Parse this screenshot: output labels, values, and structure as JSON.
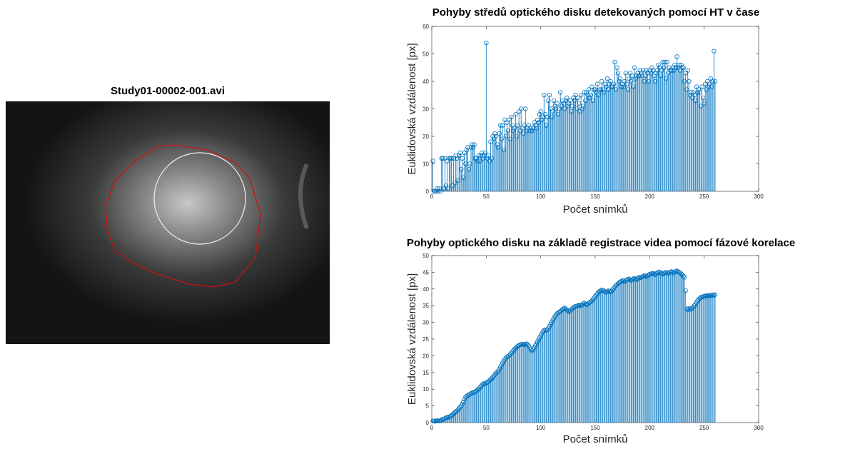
{
  "image": {
    "title": "Study01-00002-001.avi"
  },
  "chart_data": [
    {
      "type": "stem",
      "title": "Pohyby středů optického disku detekovaných pomocí HT v čase",
      "xlabel": "Počet snímků",
      "ylabel": "Euklidovská vzdálenost [px]",
      "color": "#0072bd",
      "xlim": [
        0,
        300
      ],
      "ylim": [
        0,
        60
      ],
      "xticks": [
        0,
        50,
        100,
        150,
        200,
        250,
        300
      ],
      "yticks": [
        0,
        10,
        20,
        30,
        40,
        50,
        60
      ],
      "box": true,
      "x": [
        1,
        2,
        3,
        4,
        5,
        6,
        7,
        8,
        9,
        10,
        11,
        12,
        13,
        14,
        15,
        16,
        17,
        18,
        19,
        20,
        21,
        22,
        23,
        24,
        25,
        26,
        27,
        28,
        29,
        30,
        31,
        32,
        33,
        34,
        35,
        36,
        37,
        38,
        39,
        40,
        41,
        42,
        43,
        44,
        45,
        46,
        47,
        48,
        49,
        50,
        51,
        52,
        53,
        54,
        55,
        56,
        57,
        58,
        59,
        60,
        61,
        62,
        63,
        64,
        65,
        66,
        67,
        68,
        69,
        70,
        71,
        72,
        73,
        74,
        75,
        76,
        77,
        78,
        79,
        80,
        81,
        82,
        83,
        84,
        85,
        86,
        87,
        88,
        89,
        90,
        91,
        92,
        93,
        94,
        95,
        96,
        97,
        98,
        99,
        100,
        101,
        102,
        103,
        104,
        105,
        106,
        107,
        108,
        109,
        110,
        111,
        112,
        113,
        114,
        115,
        116,
        117,
        118,
        119,
        120,
        121,
        122,
        123,
        124,
        125,
        126,
        127,
        128,
        129,
        130,
        131,
        132,
        133,
        134,
        135,
        136,
        137,
        138,
        139,
        140,
        141,
        142,
        143,
        144,
        145,
        146,
        147,
        148,
        149,
        150,
        151,
        152,
        153,
        154,
        155,
        156,
        157,
        158,
        159,
        160,
        161,
        162,
        163,
        164,
        165,
        166,
        167,
        168,
        169,
        170,
        171,
        172,
        173,
        174,
        175,
        176,
        177,
        178,
        179,
        180,
        181,
        182,
        183,
        184,
        185,
        186,
        187,
        188,
        189,
        190,
        191,
        192,
        193,
        194,
        195,
        196,
        197,
        198,
        199,
        200,
        201,
        202,
        203,
        204,
        205,
        206,
        207,
        208,
        209,
        210,
        211,
        212,
        213,
        214,
        215,
        216,
        217,
        218,
        219,
        220,
        221,
        222,
        223,
        224,
        225,
        226,
        227,
        228,
        229,
        230,
        231,
        232,
        233,
        234,
        235,
        236,
        237,
        238,
        239,
        240,
        241,
        242,
        243,
        244,
        245,
        246,
        247,
        248,
        249,
        250,
        251,
        252,
        253,
        254,
        255,
        256,
        257,
        258,
        259,
        260
      ],
      "values": [
        11,
        0,
        0,
        0,
        1,
        0,
        1,
        0,
        12,
        12,
        1,
        12,
        2,
        11,
        1,
        12,
        12,
        12,
        2,
        12,
        3,
        13,
        12,
        4,
        13,
        14,
        8,
        12,
        5,
        14,
        10,
        15,
        16,
        8,
        10,
        16,
        17,
        16,
        17,
        12,
        12,
        11,
        13,
        11,
        13,
        14,
        12,
        13,
        14,
        54,
        12,
        13,
        11,
        18,
        12,
        20,
        19,
        21,
        20,
        17,
        16,
        21,
        24,
        19,
        24,
        15,
        26,
        20,
        25,
        22,
        26,
        19,
        27,
        24,
        22,
        23,
        28,
        20,
        24,
        29,
        22,
        30,
        23,
        21,
        24,
        30,
        22,
        23,
        24,
        22,
        23,
        22,
        23,
        25,
        24,
        23,
        26,
        25,
        28,
        29,
        26,
        27,
        35,
        28,
        24,
        27,
        33,
        35,
        30,
        27,
        29,
        33,
        31,
        30,
        32,
        28,
        30,
        36,
        31,
        33,
        32,
        30,
        33,
        34,
        31,
        32,
        33,
        29,
        31,
        34,
        33,
        35,
        30,
        34,
        32,
        29,
        35,
        30,
        31,
        36,
        33,
        36,
        35,
        37,
        34,
        35,
        38,
        33,
        37,
        37,
        36,
        39,
        35,
        37,
        37,
        40,
        37,
        36,
        39,
        38,
        41,
        37,
        39,
        40,
        38,
        38,
        39,
        47,
        37,
        45,
        43,
        40,
        41,
        38,
        39,
        38,
        40,
        43,
        39,
        37,
        41,
        43,
        40,
        42,
        38,
        45,
        41,
        42,
        43,
        42,
        44,
        43,
        42,
        44,
        40,
        42,
        44,
        43,
        40,
        44,
        43,
        45,
        44,
        42,
        40,
        43,
        44,
        46,
        45,
        42,
        44,
        47,
        45,
        47,
        41,
        47,
        43,
        45,
        44,
        44,
        45,
        44,
        46,
        45,
        49,
        45,
        46,
        44,
        46,
        45,
        45,
        40,
        43,
        37,
        44,
        40,
        35,
        36,
        34,
        36,
        35,
        33,
        38,
        36,
        37,
        36,
        31,
        38,
        34,
        32,
        39,
        37,
        40,
        38,
        39,
        41,
        38,
        40,
        51,
        40
      ]
    },
    {
      "type": "stem",
      "title": "Pohyby optického disku na základě registrace videa pomocí fázové korelace",
      "xlabel": "Počet snímků",
      "ylabel": "Euklidovská vzdálenost [px]",
      "color": "#0072bd",
      "xlim": [
        0,
        300
      ],
      "ylim": [
        0,
        50
      ],
      "xticks": [
        0,
        50,
        100,
        150,
        200,
        250,
        300
      ],
      "yticks": [
        0,
        5,
        10,
        15,
        20,
        25,
        30,
        35,
        40,
        45,
        50
      ],
      "box": true,
      "x": [
        1,
        2,
        3,
        4,
        5,
        6,
        7,
        8,
        9,
        10,
        11,
        12,
        13,
        14,
        15,
        16,
        17,
        18,
        19,
        20,
        21,
        22,
        23,
        24,
        25,
        26,
        27,
        28,
        29,
        30,
        31,
        32,
        33,
        34,
        35,
        36,
        37,
        38,
        39,
        40,
        41,
        42,
        43,
        44,
        45,
        46,
        47,
        48,
        49,
        50,
        51,
        52,
        53,
        54,
        55,
        56,
        57,
        58,
        59,
        60,
        61,
        62,
        63,
        64,
        65,
        66,
        67,
        68,
        69,
        70,
        71,
        72,
        73,
        74,
        75,
        76,
        77,
        78,
        79,
        80,
        81,
        82,
        83,
        84,
        85,
        86,
        87,
        88,
        89,
        90,
        91,
        92,
        93,
        94,
        95,
        96,
        97,
        98,
        99,
        100,
        101,
        102,
        103,
        104,
        105,
        106,
        107,
        108,
        109,
        110,
        111,
        112,
        113,
        114,
        115,
        116,
        117,
        118,
        119,
        120,
        121,
        122,
        123,
        124,
        125,
        126,
        127,
        128,
        129,
        130,
        131,
        132,
        133,
        134,
        135,
        136,
        137,
        138,
        139,
        140,
        141,
        142,
        143,
        144,
        145,
        146,
        147,
        148,
        149,
        150,
        151,
        152,
        153,
        154,
        155,
        156,
        157,
        158,
        159,
        160,
        161,
        162,
        163,
        164,
        165,
        166,
        167,
        168,
        169,
        170,
        171,
        172,
        173,
        174,
        175,
        176,
        177,
        178,
        179,
        180,
        181,
        182,
        183,
        184,
        185,
        186,
        187,
        188,
        189,
        190,
        191,
        192,
        193,
        194,
        195,
        196,
        197,
        198,
        199,
        200,
        201,
        202,
        203,
        204,
        205,
        206,
        207,
        208,
        209,
        210,
        211,
        212,
        213,
        214,
        215,
        216,
        217,
        218,
        219,
        220,
        221,
        222,
        223,
        224,
        225,
        226,
        227,
        228,
        229,
        230,
        231,
        232,
        233,
        234,
        235,
        236,
        237,
        238,
        239,
        240,
        241,
        242,
        243,
        244,
        245,
        246,
        247,
        248,
        249,
        250,
        251,
        252,
        253,
        254,
        255,
        256,
        257,
        258,
        259,
        260
      ],
      "values": [
        0.5,
        0.5,
        0.4,
        0.5,
        0.6,
        0.5,
        0.5,
        0.6,
        0.8,
        1.0,
        1.0,
        1.2,
        1.4,
        1.6,
        1.5,
        1.7,
        1.9,
        2.1,
        2.4,
        2.7,
        3.0,
        3.2,
        3.5,
        3.8,
        4.2,
        4.6,
        5.0,
        5.6,
        6.2,
        7.0,
        7.6,
        7.9,
        8.1,
        8.3,
        8.5,
        8.7,
        8.9,
        9.0,
        9.1,
        9.3,
        9.5,
        9.8,
        10.0,
        10.4,
        10.8,
        11.2,
        11.5,
        11.8,
        11.6,
        11.9,
        12.0,
        12.3,
        12.6,
        12.9,
        13.2,
        13.6,
        14.0,
        14.4,
        14.8,
        15.1,
        15.4,
        16.0,
        16.6,
        17.2,
        17.8,
        18.4,
        18.9,
        19.3,
        19.6,
        19.8,
        20.0,
        20.4,
        20.8,
        21.2,
        21.6,
        22.0,
        22.3,
        22.6,
        22.9,
        23.1,
        23.3,
        23.4,
        23.5,
        23.4,
        23.3,
        23.5,
        23.6,
        23.3,
        23.0,
        22.4,
        21.8,
        21.4,
        21.8,
        22.4,
        23.0,
        23.6,
        24.2,
        24.8,
        25.4,
        26.0,
        26.6,
        27.2,
        27.6,
        27.8,
        27.6,
        27.8,
        28.2,
        28.8,
        29.4,
        30.0,
        30.6,
        31.2,
        31.8,
        32.2,
        32.6,
        32.9,
        33.1,
        33.3,
        33.6,
        33.9,
        34.1,
        34.3,
        34.0,
        33.7,
        33.4,
        33.2,
        33.5,
        33.8,
        34.1,
        34.4,
        34.6,
        34.8,
        34.9,
        35.0,
        35.1,
        35.2,
        35.0,
        35.3,
        35.6,
        35.8,
        35.5,
        35.3,
        35.5,
        35.8,
        36.0,
        36.2,
        36.5,
        36.9,
        37.3,
        37.8,
        38.2,
        38.6,
        39.0,
        39.3,
        39.5,
        39.7,
        39.6,
        39.4,
        39.2,
        39.0,
        39.2,
        39.5,
        39.3,
        39.1,
        39.4,
        39.8,
        40.2,
        40.6,
        41.0,
        41.3,
        41.6,
        41.9,
        42.1,
        42.3,
        42.5,
        42.4,
        42.2,
        42.5,
        42.7,
        42.9,
        43.0,
        42.8,
        42.6,
        42.8,
        43.0,
        43.2,
        43.0,
        42.8,
        43.1,
        43.4,
        43.5,
        43.4,
        43.6,
        43.8,
        44.0,
        43.9,
        43.7,
        44.0,
        44.2,
        44.4,
        44.5,
        44.6,
        44.7,
        44.5,
        44.3,
        44.6,
        44.8,
        45.0,
        45.1,
        44.8,
        44.6,
        44.4,
        44.7,
        44.9,
        45.0,
        44.8,
        44.6,
        44.9,
        45.1,
        45.2,
        45.0,
        44.8,
        45.1,
        45.3,
        45.4,
        45.2,
        45.0,
        44.8,
        44.5,
        44.2,
        43.8,
        43.5,
        39.5,
        34.0,
        33.8,
        34.2,
        34.0,
        33.9,
        34.3,
        34.6,
        35.0,
        35.5,
        36.0,
        36.5,
        36.9,
        37.2,
        37.5,
        37.6,
        37.7,
        37.8,
        37.9,
        38.0,
        37.9,
        38.0,
        38.1,
        38.0,
        38.1,
        38.2,
        38.1,
        38.3
      ]
    }
  ]
}
